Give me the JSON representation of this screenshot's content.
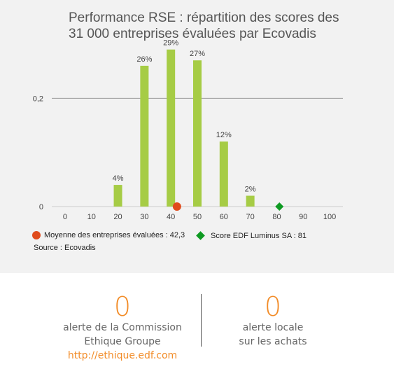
{
  "chart_data": {
    "type": "bar",
    "title_lines": [
      "Performance RSE : répartition des scores des",
      "31 000 entreprises évaluées par Ecovadis"
    ],
    "x_ticks": [
      "0",
      "10",
      "20",
      "30",
      "40",
      "50",
      "60",
      "70",
      "80",
      "90",
      "100"
    ],
    "y_ticks": [
      {
        "value": 0,
        "label": "0"
      },
      {
        "value": 0.2,
        "label": "0,2"
      }
    ],
    "ylim": [
      0,
      0.3
    ],
    "xlim": [
      -5,
      105
    ],
    "categories": [
      "20",
      "30",
      "40",
      "50",
      "60",
      "70"
    ],
    "x": [
      20,
      30,
      40,
      50,
      60,
      70
    ],
    "values": [
      0.04,
      0.26,
      0.29,
      0.27,
      0.12,
      0.02
    ],
    "data_labels": [
      "4%",
      "26%",
      "29%",
      "27%",
      "12%",
      "2%"
    ],
    "markers": [
      {
        "name": "Moyenne des entreprises évaluées : 42,3",
        "x": 42.3,
        "y": 0,
        "shape": "circle",
        "color": "#e04b1c"
      },
      {
        "name": "Score EDF Luminus SA : 81",
        "x": 81,
        "y": 0,
        "shape": "diamond",
        "color": "#0e9a22"
      }
    ],
    "bar_color": "#a6cc45",
    "grid": "horizontal",
    "legend_placement": "bottom-left",
    "source": "Source : Ecovadis"
  },
  "stats": {
    "left": {
      "value": "0",
      "line1": "alerte de la Commission",
      "line2": "Ethique Groupe",
      "link": "http://ethique.edf.com"
    },
    "right": {
      "value": "0",
      "line1": "alerte locale",
      "line2": "sur les achats"
    }
  }
}
